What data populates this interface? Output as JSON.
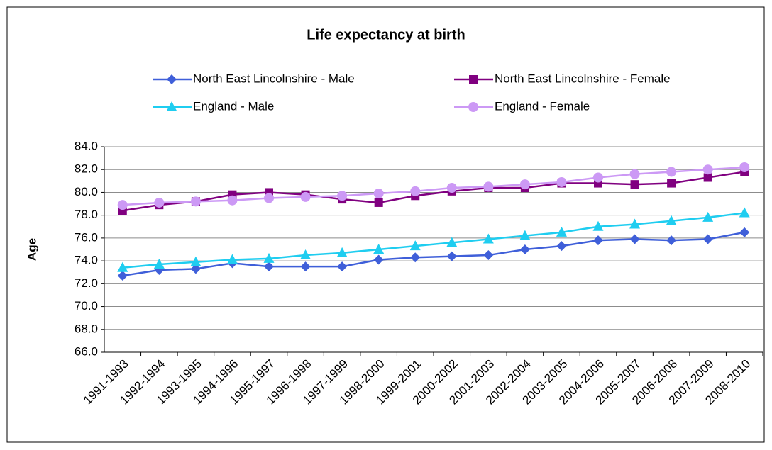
{
  "chart_data": {
    "type": "line",
    "title": "Life expectancy at birth",
    "y_label": "Age",
    "categories": [
      "1991-1993",
      "1992-1994",
      "1993-1995",
      "1994-1996",
      "1995-1997",
      "1996-1998",
      "1997-1999",
      "1998-2000",
      "1999-2001",
      "2000-2002",
      "2001-2003",
      "2002-2004",
      "2003-2005",
      "2004-2006",
      "2005-2007",
      "2006-2008",
      "2007-2009",
      "2008-2010"
    ],
    "series": [
      {
        "name": "North East Lincolnshire - Male",
        "color": "#3f5fd9",
        "marker": "diamond",
        "values": [
          72.7,
          73.2,
          73.3,
          73.8,
          73.5,
          73.5,
          73.5,
          74.1,
          74.3,
          74.4,
          74.5,
          75.0,
          75.3,
          75.8,
          75.9,
          75.8,
          75.9,
          76.5
        ]
      },
      {
        "name": "North East Lincolnshire - Female",
        "color": "#800080",
        "marker": "square",
        "values": [
          78.4,
          78.9,
          79.2,
          79.8,
          80.0,
          79.8,
          79.4,
          79.1,
          79.7,
          80.1,
          80.4,
          80.4,
          80.8,
          80.8,
          80.7,
          80.8,
          81.3,
          81.8
        ]
      },
      {
        "name": "England - Male",
        "color": "#1fcdf0",
        "marker": "triangle",
        "values": [
          73.4,
          73.7,
          73.9,
          74.1,
          74.2,
          74.5,
          74.7,
          75.0,
          75.3,
          75.6,
          75.9,
          76.2,
          76.5,
          77.0,
          77.2,
          77.5,
          77.8,
          78.2
        ]
      },
      {
        "name": "England - Female",
        "color": "#cc99f5",
        "marker": "circle",
        "values": [
          78.9,
          79.1,
          79.2,
          79.3,
          79.5,
          79.6,
          79.7,
          79.9,
          80.1,
          80.4,
          80.5,
          80.7,
          80.9,
          81.3,
          81.6,
          81.8,
          82.0,
          82.2
        ]
      }
    ],
    "ylim": [
      66,
      84
    ],
    "yticks": [
      {
        "value": 66,
        "label": "66.0"
      },
      {
        "value": 68,
        "label": "68.0"
      },
      {
        "value": 70,
        "label": "70.0"
      },
      {
        "value": 72,
        "label": "72.0"
      },
      {
        "value": 74,
        "label": "74.0"
      },
      {
        "value": 76,
        "label": "76.0"
      },
      {
        "value": 78,
        "label": "78.0"
      },
      {
        "value": 80,
        "label": "80.0"
      },
      {
        "value": 82,
        "label": "82.0"
      },
      {
        "value": 84,
        "label": "84.0"
      }
    ],
    "grid": true,
    "legend": "top"
  }
}
